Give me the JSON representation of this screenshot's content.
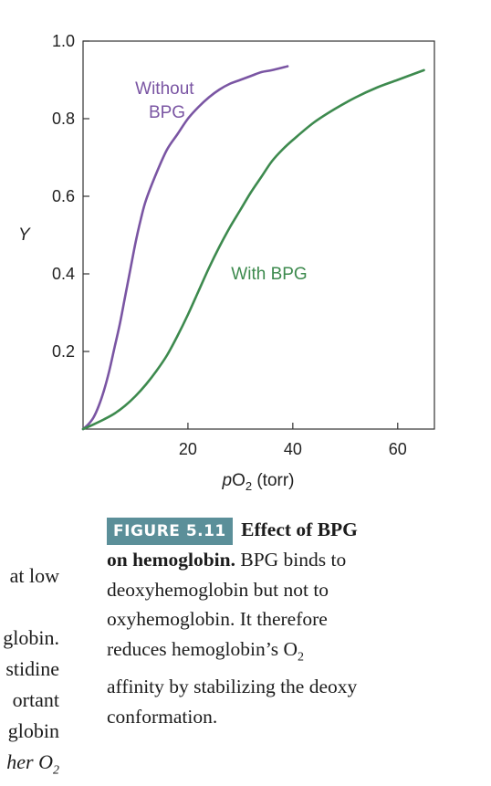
{
  "chart_data": {
    "type": "line",
    "xlabel_italic": "p",
    "xlabel_main": "O",
    "xlabel_sub": "2",
    "xlabel_suffix": " (torr)",
    "ylabel": "Y",
    "xlim": [
      0,
      67
    ],
    "ylim": [
      0,
      1.0
    ],
    "xticks": [
      20,
      40,
      60
    ],
    "yticks": [
      0.2,
      0.4,
      0.6,
      0.8,
      1.0
    ],
    "ytick_labels": [
      "0.2",
      "0.4",
      "0.6",
      "0.8",
      "1.0"
    ],
    "grid": false,
    "series": [
      {
        "name": "Without BPG",
        "label_lines": [
          "Without",
          "BPG"
        ],
        "color": "#7a55a3",
        "x": [
          0,
          1,
          2,
          3,
          4,
          5,
          6,
          7,
          8,
          9,
          10,
          11,
          12,
          14,
          16,
          18,
          20,
          22,
          24,
          26,
          28,
          30,
          32,
          34,
          36,
          39
        ],
        "y": [
          0,
          0.012,
          0.03,
          0.06,
          0.1,
          0.15,
          0.21,
          0.27,
          0.34,
          0.41,
          0.48,
          0.54,
          0.59,
          0.66,
          0.72,
          0.76,
          0.8,
          0.83,
          0.855,
          0.875,
          0.89,
          0.9,
          0.91,
          0.92,
          0.925,
          0.935
        ]
      },
      {
        "name": "With BPG",
        "label_lines": [
          "With BPG"
        ],
        "color": "#3d8a4e",
        "x": [
          0,
          2,
          4,
          6,
          8,
          10,
          12,
          14,
          16,
          18,
          20,
          22,
          24,
          26,
          28,
          30,
          32,
          34,
          36,
          38,
          40,
          44,
          48,
          52,
          56,
          60,
          65
        ],
        "y": [
          0,
          0.012,
          0.025,
          0.04,
          0.06,
          0.085,
          0.115,
          0.15,
          0.19,
          0.24,
          0.295,
          0.355,
          0.415,
          0.47,
          0.52,
          0.565,
          0.61,
          0.65,
          0.69,
          0.72,
          0.745,
          0.79,
          0.825,
          0.855,
          0.88,
          0.9,
          0.925
        ]
      }
    ]
  },
  "caption": {
    "badge": "FIGURE 5.11",
    "title_part1": "Effect of BPG",
    "title_part2": "on hemoglobin.",
    "line1_rest": " BPG binds to",
    "line2": "deoxyhemoglobin but not to",
    "line3": "oxyhemoglobin. It therefore",
    "line4_pre": "reduces hemoglobin’s O",
    "line4_sub": "2",
    "line5": "affinity by stabilizing the deoxy",
    "line6": "conformation."
  },
  "margin_text": {
    "line1": "at low",
    "line2": "globin.",
    "line3": "stidine",
    "line4": "ortant",
    "line5": "globin",
    "line6": "her O",
    "line6_sub": "2"
  }
}
